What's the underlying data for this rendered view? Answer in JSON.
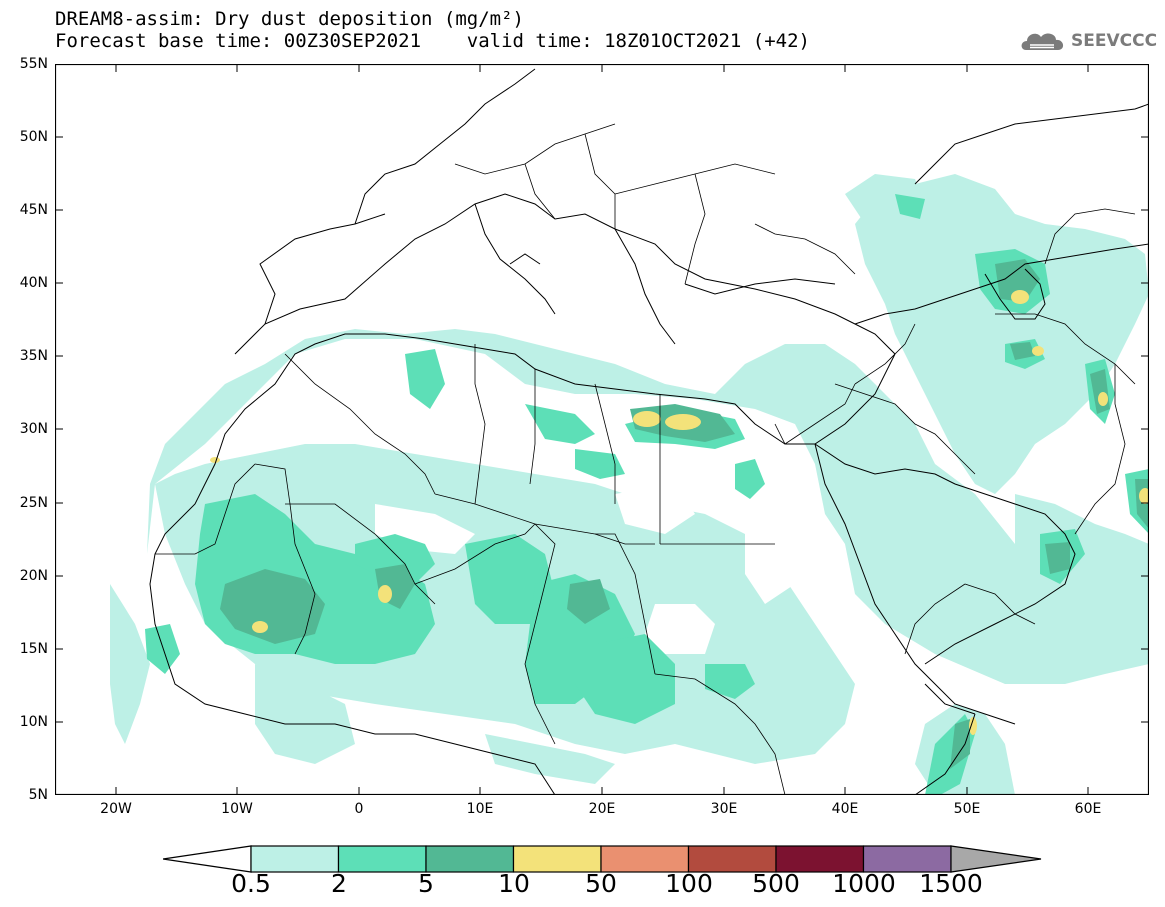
{
  "header": {
    "title_line1": "DREAM8-assim: Dry dust deposition (mg/m²)",
    "title_line2": "Forecast base time: 00Z30SEP2021    valid time: 18Z01OCT2021 (+42)"
  },
  "logo": {
    "text": "SEEVCCC",
    "icon": "cloud-logo-icon"
  },
  "map": {
    "lat_labels": [
      "55N",
      "50N",
      "45N",
      "40N",
      "35N",
      "30N",
      "25N",
      "20N",
      "15N",
      "10N",
      "5N"
    ],
    "lon_labels": [
      "20W",
      "10W",
      "0",
      "10E",
      "20E",
      "30E",
      "40E",
      "50E",
      "60E"
    ],
    "lat_range": [
      5,
      55
    ],
    "lon_range": [
      -25,
      65
    ]
  },
  "colorbar": {
    "labels": [
      "0.5",
      "2",
      "5",
      "10",
      "50",
      "100",
      "500",
      "1000",
      "1500"
    ],
    "colors": [
      "#bdf0e6",
      "#5ddfb7",
      "#52b894",
      "#f3e27a",
      "#ea9070",
      "#b24b3e",
      "#7c1230",
      "#8c6aa2",
      "#a8a8a8"
    ],
    "under_color": "#ffffff"
  }
}
